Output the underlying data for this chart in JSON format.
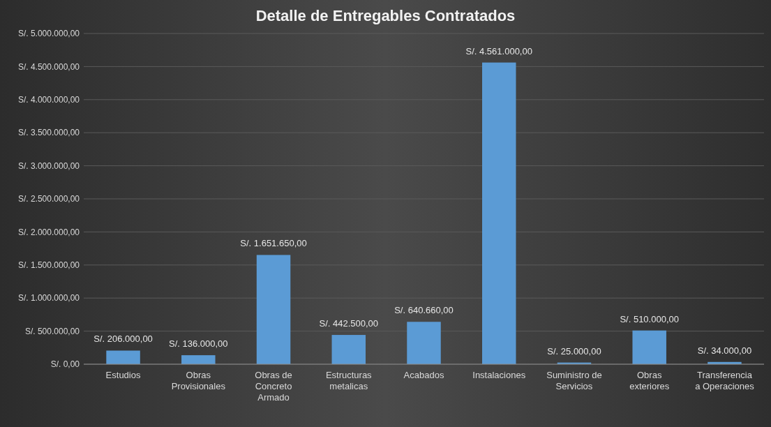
{
  "chart_data": {
    "type": "bar",
    "title": "Detalle de Entregables Contratados",
    "categories": [
      "Estudios",
      "Obras Provisionales",
      "Obras de Concreto Armado",
      "Estructuras metalicas",
      "Acabados",
      "Instalaciones",
      "Suministro de Servicios",
      "Obras exteriores",
      "Transferencia a Operaciones"
    ],
    "values": [
      206000,
      136000,
      1651650,
      442500,
      640660,
      4561000,
      25000,
      510000,
      34000
    ],
    "value_labels": [
      "S/. 206.000,00",
      "S/. 136.000,00",
      "S/. 1.651.650,00",
      "S/. 442.500,00",
      "S/. 640.660,00",
      "S/. 4.561.000,00",
      "S/. 25.000,00",
      "S/. 510.000,00",
      "S/. 34.000,00"
    ],
    "color": "#5b9bd5",
    "ylim": [
      0,
      5000000
    ],
    "yticks": [
      {
        "value": 0,
        "label": "S/. 0,00"
      },
      {
        "value": 500000,
        "label": "S/. 500.000,00"
      },
      {
        "value": 1000000,
        "label": "S/. 1.000.000,00"
      },
      {
        "value": 1500000,
        "label": "S/. 1.500.000,00"
      },
      {
        "value": 2000000,
        "label": "S/. 2.000.000,00"
      },
      {
        "value": 2500000,
        "label": "S/. 2.500.000,00"
      },
      {
        "value": 3000000,
        "label": "S/. 3.000.000,00"
      },
      {
        "value": 3500000,
        "label": "S/. 3.500.000,00"
      },
      {
        "value": 4000000,
        "label": "S/. 4.000.000,00"
      },
      {
        "value": 4500000,
        "label": "S/. 4.500.000,00"
      },
      {
        "value": 5000000,
        "label": "S/. 5.000.000,00"
      }
    ],
    "grid": "y"
  }
}
